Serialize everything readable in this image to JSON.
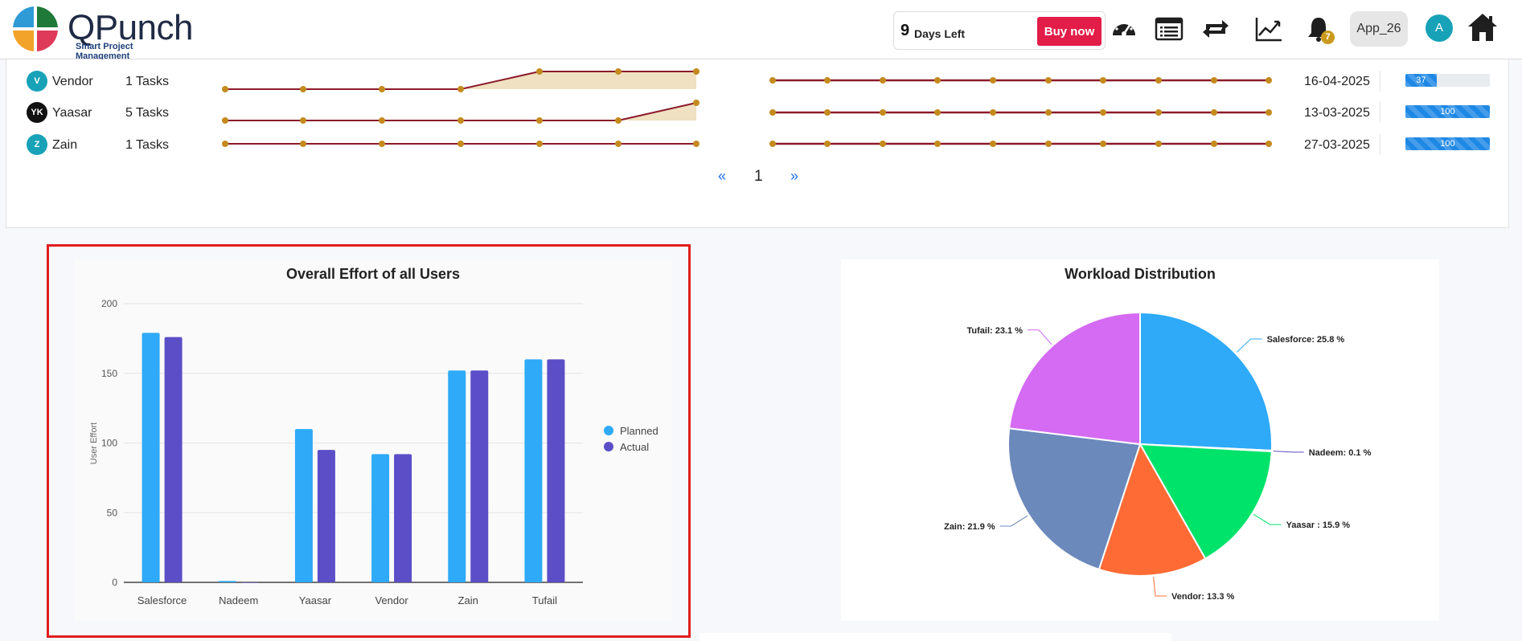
{
  "header": {
    "logo_text": "QPunch",
    "logo_sub": "Smart Project Management",
    "trial_days": "9",
    "trial_label": "Days Left",
    "buy_label": "Buy now",
    "bell_count": "7",
    "app_name": "App_26",
    "user_initial": "A",
    "icons": [
      "dashboard-gauge-icon",
      "list-icon",
      "repeat-icon",
      "trend-chart-icon",
      "bell-icon",
      "home-icon"
    ]
  },
  "task_rows": [
    {
      "initials": "V",
      "name": "Vendor",
      "tasks": "1 Tasks",
      "date": "16-04-2025",
      "progress": 37,
      "progress_label": "37",
      "avatar_color": "#17a2b8"
    },
    {
      "initials": "YK",
      "name": "Yaasar",
      "tasks": "5 Tasks",
      "date": "13-03-2025",
      "progress": 100,
      "progress_label": "100",
      "avatar_color": "#111111"
    },
    {
      "initials": "Z",
      "name": "Zain",
      "tasks": "1 Tasks",
      "date": "27-03-2025",
      "progress": 100,
      "progress_label": "100",
      "avatar_color": "#17a2b8"
    }
  ],
  "pagination": {
    "prev": "«",
    "page": "1",
    "next": "»"
  },
  "colors": {
    "planned": "#2eaaf8",
    "actual": "#5b4ec7",
    "spark_line": "#8b1a2b",
    "spark_dot": "#c48a1e",
    "spark_fill": "#efe1c2",
    "highlight": "#e01e1e"
  },
  "chart_data": [
    {
      "type": "bar",
      "title": "Overall Effort of all Users",
      "ylabel": "User Effort",
      "xlabel": "",
      "ylim": [
        0,
        200
      ],
      "yticks": [
        0,
        50,
        100,
        150,
        200
      ],
      "categories": [
        "Salesforce",
        "Nadeem",
        "Yaasar",
        "Vendor",
        "Zain",
        "Tufail"
      ],
      "series": [
        {
          "name": "Planned",
          "values": [
            179,
            1,
            110,
            92,
            152,
            160
          ]
        },
        {
          "name": "Actual",
          "values": [
            176,
            0,
            95,
            92,
            152,
            160
          ]
        }
      ],
      "legend": "right",
      "grid": true
    },
    {
      "type": "pie",
      "title": "Workload Distribution",
      "slices": [
        {
          "label": "Salesforce: 25.8 %",
          "value": 25.8,
          "color": "#2eaaf8"
        },
        {
          "label": "Nadeem: 0.1 %",
          "value": 0.1,
          "color": "#5b4ec7"
        },
        {
          "label": "Yaasar : 15.9 %",
          "value": 15.9,
          "color": "#00e36b"
        },
        {
          "label": "Vendor: 13.3 %",
          "value": 13.3,
          "color": "#ff6b35"
        },
        {
          "label": "Zain: 21.9 %",
          "value": 21.9,
          "color": "#6b89bb"
        },
        {
          "label": "Tufail: 23.1 %",
          "value": 23.1,
          "color": "#d46bf2"
        }
      ]
    }
  ]
}
